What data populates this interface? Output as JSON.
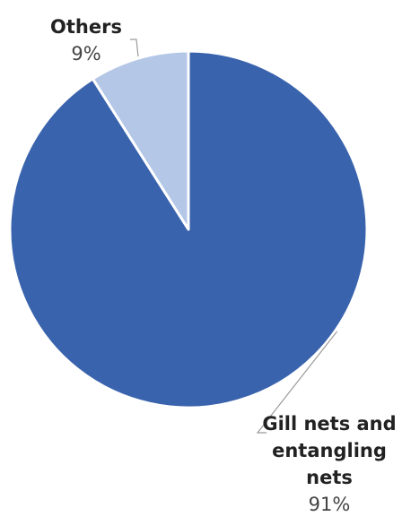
{
  "chart_data": {
    "type": "pie",
    "title": "",
    "slices": [
      {
        "label": "Gill nets and entangling nets",
        "label_lines": [
          "Gill nets and",
          "entangling",
          "nets"
        ],
        "value": 91,
        "value_label": "91%",
        "color": "#3a63ad"
      },
      {
        "label": "Others",
        "label_lines": [
          "Others"
        ],
        "value": 9,
        "value_label": "9%",
        "color": "#b4c7e7"
      }
    ],
    "start_angle": "12 o'clock",
    "direction": "clockwise",
    "legend": "none"
  }
}
